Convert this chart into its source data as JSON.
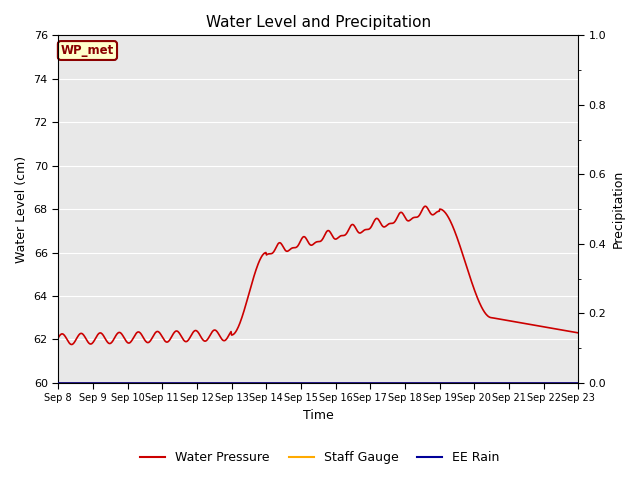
{
  "title": "Water Level and Precipitation",
  "xlabel": "Time",
  "ylabel_left": "Water Level (cm)",
  "ylabel_right": "Precipitation",
  "ylim_left": [
    60,
    76
  ],
  "ylim_right": [
    0.0,
    1.0
  ],
  "yticks_left": [
    60,
    62,
    64,
    66,
    68,
    70,
    72,
    74,
    76
  ],
  "yticks_right": [
    0.0,
    0.2,
    0.4,
    0.6,
    0.8,
    1.0
  ],
  "xtick_labels": [
    "Sep 8",
    "Sep 9",
    "Sep 10",
    "Sep 11",
    "Sep 12",
    "Sep 13",
    "Sep 14",
    "Sep 15",
    "Sep 16",
    "Sep 17",
    "Sep 18",
    "Sep 19",
    "Sep 20",
    "Sep 21",
    "Sep 22",
    "Sep 23"
  ],
  "annotation_text": "WP_met",
  "annotation_bg": "#ffffcc",
  "annotation_border": "#8B0000",
  "annotation_text_color": "#8B0000",
  "line_color_wp": "#cc0000",
  "line_color_staff": "#ffaa00",
  "line_color_rain": "#000099",
  "legend_labels": [
    "Water Pressure",
    "Staff Gauge",
    "EE Rain"
  ],
  "bg_color": "#e8e8e8",
  "grid_color": "#ffffff",
  "figsize": [
    6.4,
    4.8
  ],
  "dpi": 100
}
